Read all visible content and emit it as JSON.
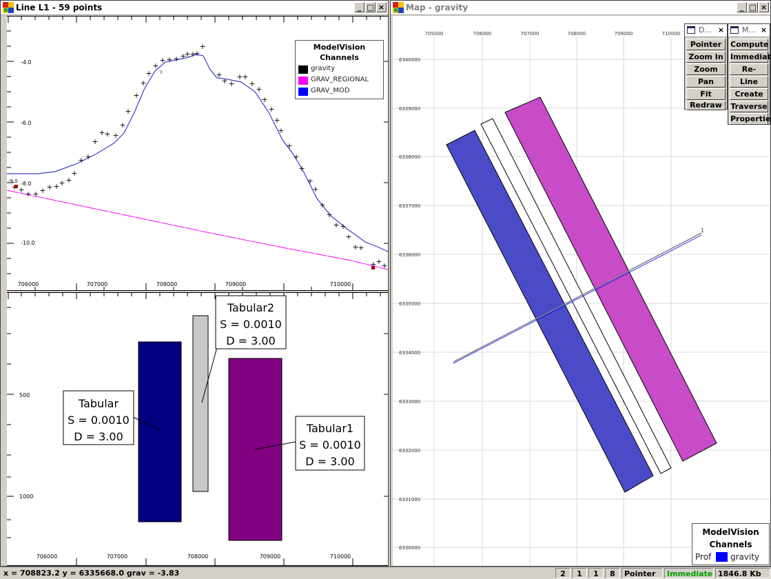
{
  "profile_window": {
    "title": "Line L1 - 59 points",
    "buttons": {
      "minimize": "_",
      "maximize": "□",
      "close": "×"
    },
    "legend": {
      "title_line1": "ModelVision",
      "title_line2": "Channels",
      "items": [
        {
          "label": "gravity",
          "color": "#000000"
        },
        {
          "label": "GRAV_REGIONAL",
          "color": "#ff00ff"
        },
        {
          "label": "GRAV_MOD",
          "color": "#0000ff"
        }
      ]
    },
    "profile_y_ticks": [
      "-4.0",
      "-6.0",
      "-8.0",
      "-10.0"
    ],
    "x_ticks": [
      "706000",
      "707000",
      "708000",
      "709000",
      "710000"
    ],
    "section_y_ticks": [
      "500",
      "1000"
    ],
    "bodies": [
      {
        "name": "Tabular",
        "s": "S = 0.0010",
        "d": "D =  3.00",
        "color": "#000080"
      },
      {
        "name": "Tabular2",
        "s": "S = 0.0010",
        "d": "D =  3.00",
        "color": "#c8c8c8"
      },
      {
        "name": "Tabular1",
        "s": "S = 0.0010",
        "d": "D =  3.00",
        "color": "#800080"
      }
    ]
  },
  "map_window": {
    "title": "Map - gravity",
    "buttons": {
      "minimize": "_",
      "maximize": "□",
      "close": "×"
    },
    "x_ticks": [
      "705000",
      "706000",
      "707000",
      "708000",
      "709000",
      "710000"
    ],
    "y_ticks": [
      "6340000",
      "6339000",
      "6338000",
      "6337000",
      "6336000",
      "6335000",
      "6334000",
      "6333000",
      "6332000",
      "6331000",
      "6330000"
    ],
    "line_label": "1",
    "legend": {
      "title_line1": "ModelVision",
      "title_line2": "Channels",
      "prefix": "Prof",
      "item": "gravity",
      "color": "#0000ff"
    }
  },
  "toolbox_d": {
    "title": "D...",
    "close": "×",
    "buttons": [
      "Pointer",
      "Zoom In",
      "Zoom Out",
      "Pan",
      "Fit",
      "Redraw"
    ]
  },
  "toolbox_m": {
    "title": "M...",
    "close": "×",
    "buttons": [
      "Compute",
      "Immediate",
      "Re-shape",
      "Line",
      "Create",
      "Traverse",
      "Properties"
    ]
  },
  "statusbar": {
    "coords": "x = 708823.2  y = 6335668.0  grav = -3.83",
    "f1": "2",
    "f2": "1",
    "f3": "1",
    "f4": "8",
    "mode": "Pointer",
    "compute": "Immediate",
    "memory": "1846.8 Kb"
  },
  "colors": {
    "tab_blue": "#4b4bc8",
    "tab_magenta": "#c84bc8",
    "line_blue": "#0000ff",
    "regional": "#ff00ff"
  }
}
